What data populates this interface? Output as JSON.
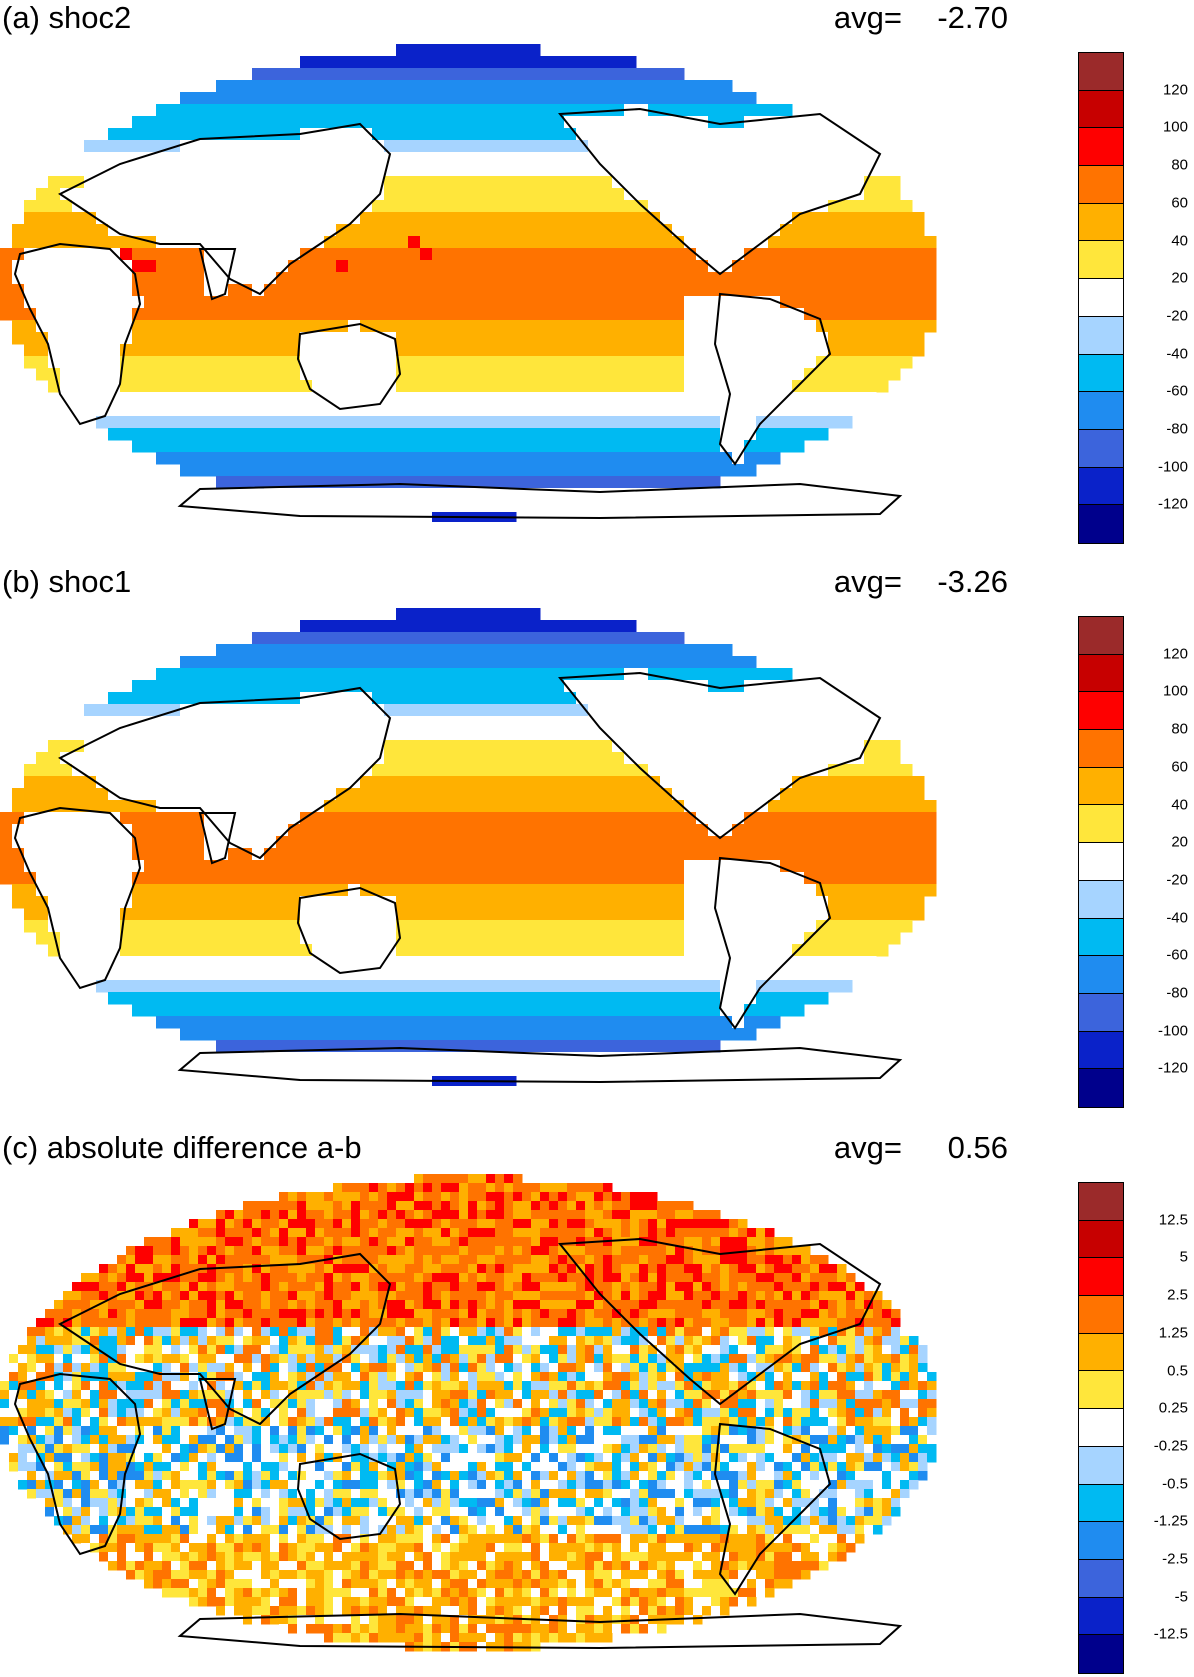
{
  "panels": [
    {
      "title": "(a) shoc2",
      "avg_label": "avg=",
      "avg_value": "-2.70",
      "colorbar_labels": [
        "120",
        "100",
        "80",
        "60",
        "40",
        "20",
        "-20",
        "-40",
        "-60",
        "-80",
        "-100",
        "-120"
      ],
      "pattern": "field"
    },
    {
      "title": "(b) shoc1",
      "avg_label": "avg=",
      "avg_value": "-3.26",
      "colorbar_labels": [
        "120",
        "100",
        "80",
        "60",
        "40",
        "20",
        "-20",
        "-40",
        "-60",
        "-80",
        "-100",
        "-120"
      ],
      "pattern": "field"
    },
    {
      "title": "(c) absolute difference a-b",
      "avg_label": "avg=",
      "avg_value": "0.56",
      "colorbar_labels": [
        "12.5",
        "5",
        "2.5",
        "1.25",
        "0.5",
        "0.25",
        "-0.25",
        "-0.5",
        "-1.25",
        "-2.5",
        "-5",
        "-12.5"
      ],
      "pattern": "noise"
    }
  ],
  "colors": {
    "palette": [
      "#9b2a2a",
      "#c70000",
      "#fe0000",
      "#ff7300",
      "#ffb000",
      "#ffe63b",
      "#ffffff",
      "#a6d4ff",
      "#00baf2",
      "#1f8cf0",
      "#3c64dc",
      "#0a22c9",
      "#00008c"
    ]
  }
}
